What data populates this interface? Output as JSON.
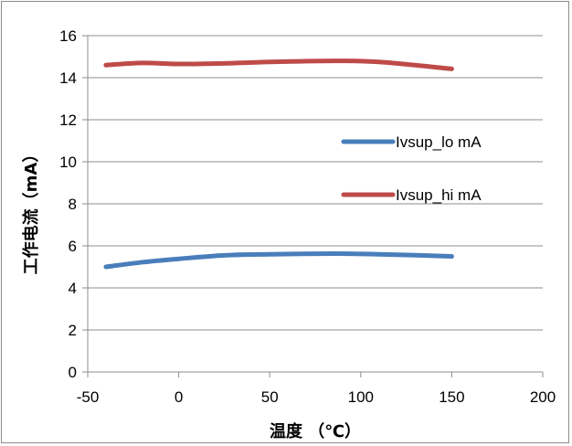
{
  "chart_data": {
    "type": "line",
    "title": "",
    "xlabel": "温度 （℃）",
    "ylabel": "工作电流（mA）",
    "xlim": [
      -50,
      200
    ],
    "ylim": [
      0,
      16
    ],
    "x_ticks": [
      "-50",
      "0",
      "50",
      "100",
      "150",
      "200"
    ],
    "y_ticks": [
      "0",
      "2",
      "4",
      "6",
      "8",
      "10",
      "12",
      "14",
      "16"
    ],
    "grid": "horizontal",
    "legend_position": "right-middle",
    "series": [
      {
        "name": "Ivsup_lo mA",
        "color": "#4a7ebb",
        "x": [
          -40,
          -20,
          0,
          25,
          50,
          85,
          110,
          150
        ],
        "y": [
          5.0,
          5.22,
          5.38,
          5.55,
          5.6,
          5.63,
          5.6,
          5.5
        ]
      },
      {
        "name": "Ivsup_hi mA",
        "color": "#be4b48",
        "x": [
          -40,
          -20,
          0,
          25,
          50,
          85,
          110,
          150
        ],
        "y": [
          14.6,
          14.7,
          14.65,
          14.68,
          14.75,
          14.8,
          14.75,
          14.42
        ]
      }
    ]
  }
}
